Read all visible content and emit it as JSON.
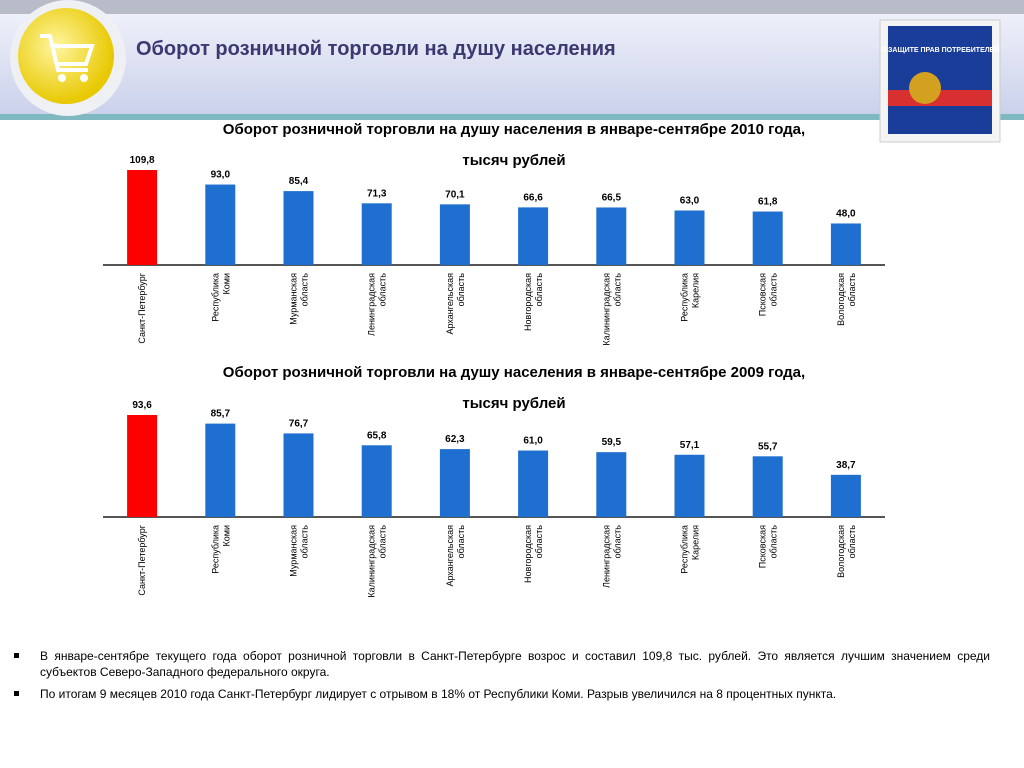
{
  "header": {
    "title": "Оборот розничной торговли на душу населения",
    "book_title": "О ЗАЩИТЕ ПРАВ ПОТРЕБИТЕЛЕЙ"
  },
  "chart_data": [
    {
      "type": "bar",
      "title": "Оборот розничной торговли на душу населения в январе-сентябре 2010 года,",
      "subtitle": "тысяч рублей",
      "categories": [
        "Санкт-Петербург",
        "Республика Коми",
        "Мурманская область",
        "Ленинградская область",
        "Архангельская область",
        "Новгородская область",
        "Калининградская область",
        "Республика Карелия",
        "Псковская область",
        "Вологодская область"
      ],
      "values": [
        109.8,
        93.0,
        85.4,
        71.3,
        70.1,
        66.6,
        66.5,
        63.0,
        61.8,
        48.0
      ],
      "value_labels": [
        "109,8",
        "93,0",
        "85,4",
        "71,3",
        "70,1",
        "66,6",
        "66,5",
        "63,0",
        "61,8",
        "48,0"
      ],
      "colors": [
        "#ff0000",
        "#1f6fd0",
        "#1f6fd0",
        "#1f6fd0",
        "#1f6fd0",
        "#1f6fd0",
        "#1f6fd0",
        "#1f6fd0",
        "#1f6fd0",
        "#1f6fd0"
      ]
    },
    {
      "type": "bar",
      "title": "Оборот розничной торговли на душу населения в январе-сентябре 2009 года,",
      "subtitle": "тысяч рублей",
      "categories": [
        "Санкт-Петербург",
        "Республика Коми",
        "Мурманская область",
        "Калининградская область",
        "Архангельская область",
        "Новгородская область",
        "Ленинградская область",
        "Республика Карелия",
        "Псковская область",
        "Вологодская область"
      ],
      "values": [
        93.6,
        85.7,
        76.7,
        65.8,
        62.3,
        61.0,
        59.5,
        57.1,
        55.7,
        38.7
      ],
      "value_labels": [
        "93,6",
        "85,7",
        "76,7",
        "65,8",
        "62,3",
        "61,0",
        "59,5",
        "57,1",
        "55,7",
        "38,7"
      ],
      "colors": [
        "#ff0000",
        "#1f6fd0",
        "#1f6fd0",
        "#1f6fd0",
        "#1f6fd0",
        "#1f6fd0",
        "#1f6fd0",
        "#1f6fd0",
        "#1f6fd0",
        "#1f6fd0"
      ]
    }
  ],
  "bullets": [
    "В январе-сентябре текущего года оборот розничной торговли в Санкт-Петербурге возрос и составил 109,8 тыс. рублей. Это является лучшим значением среди субъектов Северо-Западного федерального округа.",
    "По итогам 9 месяцев 2010 года Санкт-Петербург лидирует с отрывом в 18% от Республики Коми. Разрыв увеличился на 8 процентных пункта."
  ]
}
